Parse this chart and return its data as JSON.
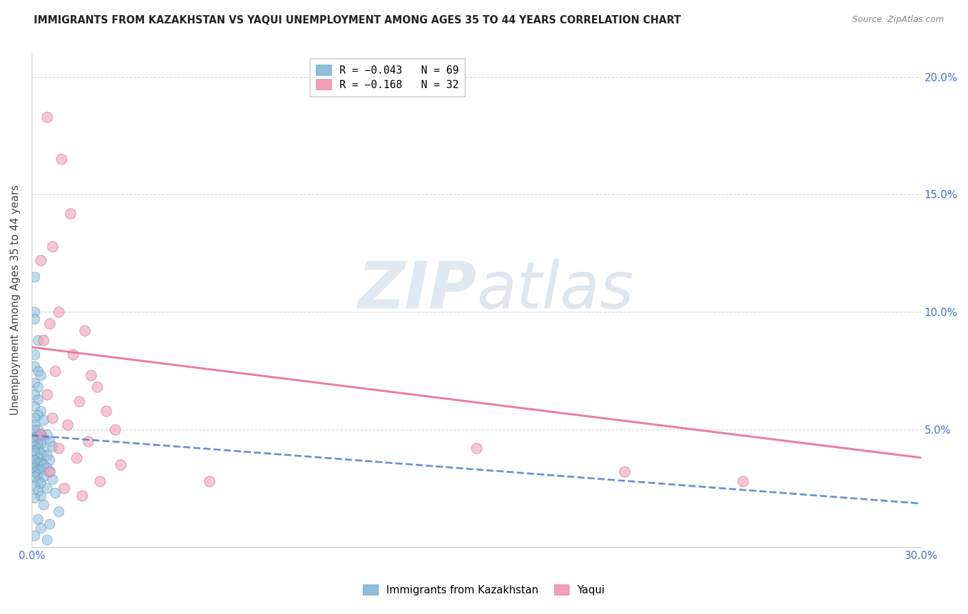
{
  "title": "IMMIGRANTS FROM KAZAKHSTAN VS YAQUI UNEMPLOYMENT AMONG AGES 35 TO 44 YEARS CORRELATION CHART",
  "source": "Source: ZipAtlas.com",
  "ylabel": "Unemployment Among Ages 35 to 44 years",
  "xlim": [
    0.0,
    0.3
  ],
  "ylim": [
    0.0,
    0.21
  ],
  "xtick_positions": [
    0.0,
    0.05,
    0.1,
    0.15,
    0.2,
    0.25,
    0.3
  ],
  "xtick_labels": [
    "0.0%",
    "",
    "",
    "",
    "",
    "",
    "30.0%"
  ],
  "ytick_positions": [
    0.0,
    0.05,
    0.1,
    0.15,
    0.2
  ],
  "ytick_labels_right": [
    "",
    "5.0%",
    "10.0%",
    "15.0%",
    "20.0%"
  ],
  "watermark_text": "ZIPatlas",
  "blue_color": "#90bedd",
  "pink_color": "#f2a0b5",
  "blue_line_color": "#5588cc",
  "pink_line_color": "#e87090",
  "kaz_line": {
    "x0": 0.0,
    "y0": 0.0475,
    "x1": 0.3,
    "y1": 0.0185
  },
  "yaqui_line": {
    "x0": 0.0,
    "y0": 0.085,
    "x1": 0.3,
    "y1": 0.038
  },
  "kazakhstan_points": [
    [
      0.001,
      0.115
    ],
    [
      0.001,
      0.1
    ],
    [
      0.001,
      0.097
    ],
    [
      0.002,
      0.088
    ],
    [
      0.001,
      0.082
    ],
    [
      0.001,
      0.077
    ],
    [
      0.002,
      0.075
    ],
    [
      0.003,
      0.073
    ],
    [
      0.001,
      0.07
    ],
    [
      0.002,
      0.068
    ],
    [
      0.001,
      0.065
    ],
    [
      0.002,
      0.063
    ],
    [
      0.001,
      0.06
    ],
    [
      0.003,
      0.058
    ],
    [
      0.002,
      0.056
    ],
    [
      0.001,
      0.055
    ],
    [
      0.004,
      0.054
    ],
    [
      0.001,
      0.052
    ],
    [
      0.002,
      0.05
    ],
    [
      0.001,
      0.05
    ],
    [
      0.003,
      0.048
    ],
    [
      0.005,
      0.048
    ],
    [
      0.001,
      0.047
    ],
    [
      0.002,
      0.047
    ],
    [
      0.004,
      0.046
    ],
    [
      0.001,
      0.045
    ],
    [
      0.006,
      0.045
    ],
    [
      0.002,
      0.044
    ],
    [
      0.003,
      0.044
    ],
    [
      0.001,
      0.043
    ],
    [
      0.007,
      0.043
    ],
    [
      0.002,
      0.042
    ],
    [
      0.001,
      0.041
    ],
    [
      0.004,
      0.041
    ],
    [
      0.003,
      0.04
    ],
    [
      0.001,
      0.04
    ],
    [
      0.005,
      0.039
    ],
    [
      0.002,
      0.038
    ],
    [
      0.001,
      0.037
    ],
    [
      0.006,
      0.037
    ],
    [
      0.003,
      0.036
    ],
    [
      0.002,
      0.036
    ],
    [
      0.001,
      0.035
    ],
    [
      0.004,
      0.035
    ],
    [
      0.001,
      0.034
    ],
    [
      0.005,
      0.034
    ],
    [
      0.002,
      0.033
    ],
    [
      0.003,
      0.033
    ],
    [
      0.001,
      0.032
    ],
    [
      0.006,
      0.032
    ],
    [
      0.002,
      0.031
    ],
    [
      0.001,
      0.03
    ],
    [
      0.004,
      0.03
    ],
    [
      0.007,
      0.029
    ],
    [
      0.002,
      0.028
    ],
    [
      0.003,
      0.027
    ],
    [
      0.001,
      0.026
    ],
    [
      0.005,
      0.025
    ],
    [
      0.002,
      0.024
    ],
    [
      0.008,
      0.023
    ],
    [
      0.003,
      0.022
    ],
    [
      0.001,
      0.021
    ],
    [
      0.004,
      0.018
    ],
    [
      0.009,
      0.015
    ],
    [
      0.002,
      0.012
    ],
    [
      0.006,
      0.01
    ],
    [
      0.003,
      0.008
    ],
    [
      0.001,
      0.005
    ],
    [
      0.005,
      0.003
    ]
  ],
  "yaqui_points": [
    [
      0.005,
      0.183
    ],
    [
      0.01,
      0.165
    ],
    [
      0.013,
      0.142
    ],
    [
      0.007,
      0.128
    ],
    [
      0.003,
      0.122
    ],
    [
      0.009,
      0.1
    ],
    [
      0.006,
      0.095
    ],
    [
      0.018,
      0.092
    ],
    [
      0.004,
      0.088
    ],
    [
      0.014,
      0.082
    ],
    [
      0.008,
      0.075
    ],
    [
      0.02,
      0.073
    ],
    [
      0.022,
      0.068
    ],
    [
      0.005,
      0.065
    ],
    [
      0.016,
      0.062
    ],
    [
      0.025,
      0.058
    ],
    [
      0.007,
      0.055
    ],
    [
      0.012,
      0.052
    ],
    [
      0.028,
      0.05
    ],
    [
      0.003,
      0.048
    ],
    [
      0.019,
      0.045
    ],
    [
      0.009,
      0.042
    ],
    [
      0.015,
      0.038
    ],
    [
      0.03,
      0.035
    ],
    [
      0.006,
      0.032
    ],
    [
      0.023,
      0.028
    ],
    [
      0.011,
      0.025
    ],
    [
      0.017,
      0.022
    ],
    [
      0.15,
      0.042
    ],
    [
      0.2,
      0.032
    ],
    [
      0.06,
      0.028
    ],
    [
      0.24,
      0.028
    ]
  ],
  "legend1_blue_text": "R = −0.043   N = 69",
  "legend1_pink_text": "R = −0.168   N = 32",
  "legend2_blue_text": "Immigrants from Kazakhstan",
  "legend2_pink_text": "Yaqui"
}
